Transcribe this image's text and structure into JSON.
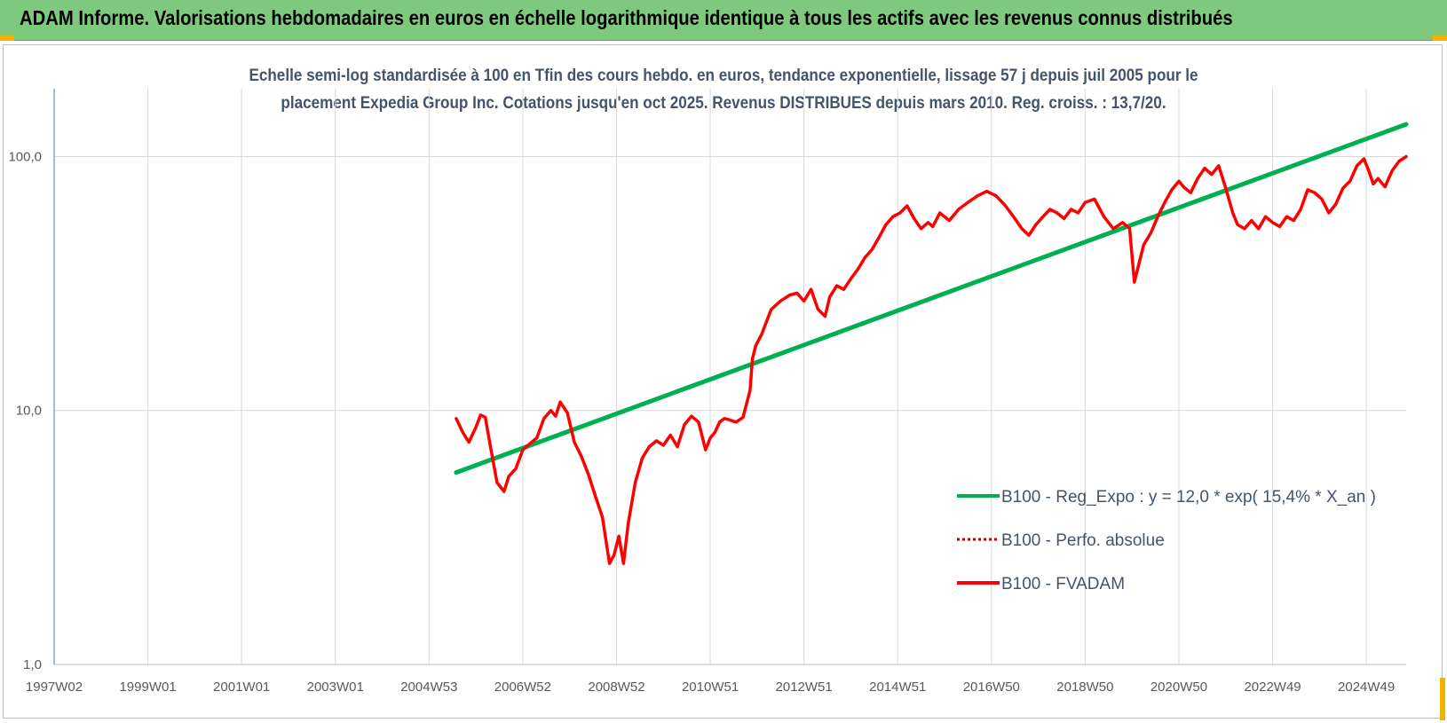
{
  "header": {
    "title": "ADAM Informe. Valorisations hebdomadaires en euros en échelle logarithmique identique à tous les actifs avec les revenus connus distribués"
  },
  "colors": {
    "banner": "#7fc97f",
    "accent": "#f0b400",
    "trend": "#00b050",
    "fvadam": "#ff0000",
    "title_text": "#44546a"
  },
  "chart_data": {
    "type": "line",
    "title_line1": "Echelle semi-log standardisée à 100 en Tfin des cours hebdo. en euros, tendance exponentielle, lissage 57 j depuis juil 2005 pour le",
    "title_line2": "placement Expedia Group Inc.  Cotations jusqu'en oct 2025. Revenus DISTRIBUES depuis mars 2010. Reg. croiss. : 13,7/20.",
    "y_scale": "log",
    "ylim": [
      1,
      185
    ],
    "xlim": [
      1997.0,
      2025.85
    ],
    "yticks": [
      {
        "value": 100,
        "label": "100,0"
      },
      {
        "value": 10,
        "label": "10,0"
      },
      {
        "value": 1,
        "label": "1,0"
      }
    ],
    "xticks": [
      {
        "value": 1997.0,
        "label": "1997W02"
      },
      {
        "value": 1999.0,
        "label": "1999W01"
      },
      {
        "value": 2001.0,
        "label": "2001W01"
      },
      {
        "value": 2003.0,
        "label": "2003W01"
      },
      {
        "value": 2005.0,
        "label": "2004W53"
      },
      {
        "value": 2007.0,
        "label": "2006W52"
      },
      {
        "value": 2009.0,
        "label": "2008W52"
      },
      {
        "value": 2011.0,
        "label": "2010W51"
      },
      {
        "value": 2013.0,
        "label": "2012W51"
      },
      {
        "value": 2015.0,
        "label": "2014W51"
      },
      {
        "value": 2017.0,
        "label": "2016W50"
      },
      {
        "value": 2019.0,
        "label": "2018W50"
      },
      {
        "value": 2021.0,
        "label": "2020W50"
      },
      {
        "value": 2023.0,
        "label": "2022W49"
      },
      {
        "value": 2025.0,
        "label": "2024W49"
      }
    ],
    "grid": "vertical",
    "legend_position": "bottom-right",
    "series": [
      {
        "name": "B100 - Reg_Expo : y = 12,0 * exp( 15,4% *  X_an )",
        "color": "#00b050",
        "style": "solid",
        "x": [
          2005.58,
          2025.85
        ],
        "y": [
          5.7,
          134
        ]
      },
      {
        "name": "B100 - Perfo. absolue",
        "color": "#c00000",
        "style": "dotted",
        "x": [],
        "y": []
      },
      {
        "name": "B100 - FVADAM",
        "color": "#ff0000",
        "style": "solid",
        "x": [
          2005.58,
          2005.72,
          2005.85,
          2006.0,
          2006.1,
          2006.2,
          2006.3,
          2006.45,
          2006.6,
          2006.7,
          2006.85,
          2007.0,
          2007.15,
          2007.3,
          2007.45,
          2007.6,
          2007.7,
          2007.8,
          2007.95,
          2008.1,
          2008.25,
          2008.4,
          2008.55,
          2008.7,
          2008.85,
          2008.95,
          2009.05,
          2009.15,
          2009.25,
          2009.4,
          2009.55,
          2009.7,
          2009.85,
          2010.0,
          2010.15,
          2010.3,
          2010.45,
          2010.6,
          2010.75,
          2010.9,
          2011.0,
          2011.1,
          2011.2,
          2011.3,
          2011.4,
          2011.55,
          2011.7,
          2011.85,
          2011.9,
          2011.97,
          2012.1,
          2012.3,
          2012.5,
          2012.7,
          2012.85,
          2013.0,
          2013.15,
          2013.3,
          2013.45,
          2013.55,
          2013.7,
          2013.85,
          2014.0,
          2014.15,
          2014.3,
          2014.45,
          2014.6,
          2014.75,
          2014.9,
          2015.05,
          2015.2,
          2015.35,
          2015.5,
          2015.65,
          2015.75,
          2015.9,
          2016.1,
          2016.3,
          2016.5,
          2016.7,
          2016.9,
          2017.1,
          2017.3,
          2017.5,
          2017.65,
          2017.8,
          2017.95,
          2018.1,
          2018.25,
          2018.4,
          2018.55,
          2018.7,
          2018.85,
          2019.0,
          2019.2,
          2019.4,
          2019.6,
          2019.8,
          2019.95,
          2020.05,
          2020.15,
          2020.25,
          2020.4,
          2020.55,
          2020.7,
          2020.85,
          2021.0,
          2021.1,
          2021.25,
          2021.4,
          2021.55,
          2021.7,
          2021.85,
          2022.0,
          2022.15,
          2022.25,
          2022.4,
          2022.55,
          2022.7,
          2022.85,
          2023.0,
          2023.15,
          2023.3,
          2023.45,
          2023.6,
          2023.75,
          2023.9,
          2024.05,
          2024.2,
          2024.35,
          2024.5,
          2024.65,
          2024.8,
          2024.95,
          2025.05,
          2025.15,
          2025.25,
          2025.4,
          2025.55,
          2025.7,
          2025.85
        ],
        "y": [
          9.3,
          8.2,
          7.5,
          8.6,
          9.6,
          9.4,
          7.4,
          5.2,
          4.8,
          5.5,
          5.9,
          7.0,
          7.4,
          7.8,
          9.3,
          10.0,
          9.5,
          10.8,
          9.8,
          7.5,
          6.6,
          5.6,
          4.6,
          3.8,
          2.5,
          2.7,
          3.2,
          2.5,
          3.6,
          5.2,
          6.5,
          7.2,
          7.6,
          7.3,
          8.0,
          7.2,
          8.8,
          9.5,
          9.0,
          7.0,
          7.8,
          8.2,
          9.0,
          9.3,
          9.2,
          9.0,
          9.4,
          12.0,
          16.0,
          18.0,
          20.0,
          25.0,
          27.0,
          28.5,
          29.0,
          27.0,
          30.0,
          25.0,
          23.5,
          28.0,
          31.0,
          30.0,
          33.0,
          36.0,
          40.0,
          43.0,
          48.0,
          54.0,
          58.0,
          60.0,
          64.0,
          57.0,
          52.0,
          55.0,
          53.0,
          60.0,
          56.0,
          62.0,
          66.0,
          70.0,
          73.0,
          70.0,
          64.0,
          57.0,
          52.0,
          49.0,
          54.0,
          58.0,
          62.0,
          60.0,
          57.0,
          62.0,
          60.0,
          66.0,
          68.0,
          58.0,
          52.0,
          55.0,
          52.0,
          32.0,
          38.0,
          45.0,
          50.0,
          58.0,
          66.0,
          74.0,
          80.0,
          76.0,
          72.0,
          82.0,
          90.0,
          85.0,
          92.0,
          75.0,
          60.0,
          54.0,
          52.0,
          56.0,
          52.0,
          58.0,
          55.0,
          53.0,
          58.0,
          56.0,
          62.0,
          74.0,
          72.0,
          68.0,
          60.0,
          65.0,
          75.0,
          80.0,
          92.0,
          98.0,
          88.0,
          78.0,
          82.0,
          76.0,
          88.0,
          96.0,
          100.0
        ]
      }
    ]
  }
}
